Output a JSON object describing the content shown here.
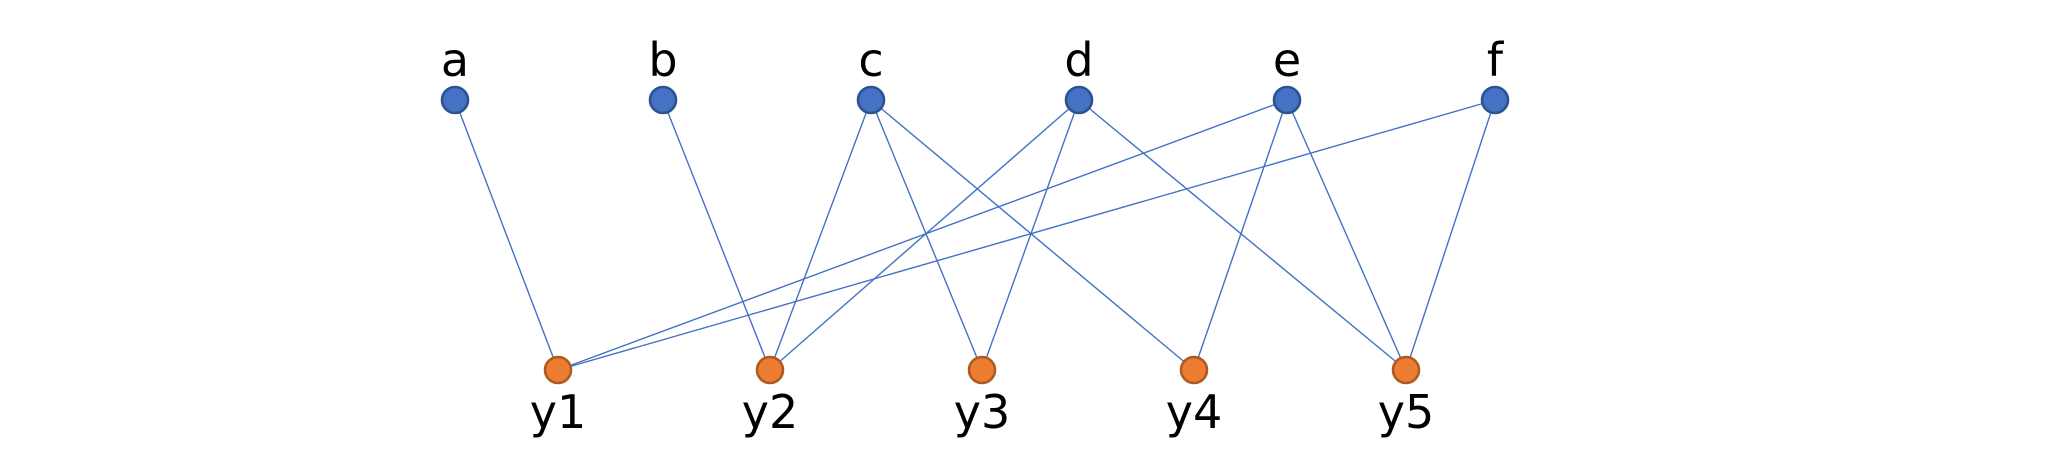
{
  "colors": {
    "top_node_fill": "#4472C4",
    "top_node_stroke": "#2F528F",
    "bottom_node_fill": "#ED7D31",
    "bottom_node_stroke": "#AE5A21",
    "edge": "#4472C4"
  },
  "top_nodes": [
    {
      "id": "a",
      "label": "a"
    },
    {
      "id": "b",
      "label": "b"
    },
    {
      "id": "c",
      "label": "c"
    },
    {
      "id": "d",
      "label": "d"
    },
    {
      "id": "e",
      "label": "e"
    },
    {
      "id": "f",
      "label": "f"
    }
  ],
  "bottom_nodes": [
    {
      "id": "y1",
      "label": "y1"
    },
    {
      "id": "y2",
      "label": "y2"
    },
    {
      "id": "y3",
      "label": "y3"
    },
    {
      "id": "y4",
      "label": "y4"
    },
    {
      "id": "y5",
      "label": "y5"
    }
  ],
  "edges": [
    [
      "a",
      "y1"
    ],
    [
      "b",
      "y2"
    ],
    [
      "c",
      "y2"
    ],
    [
      "c",
      "y3"
    ],
    [
      "c",
      "y4"
    ],
    [
      "d",
      "y2"
    ],
    [
      "d",
      "y3"
    ],
    [
      "d",
      "y5"
    ],
    [
      "e",
      "y1"
    ],
    [
      "e",
      "y4"
    ],
    [
      "e",
      "y5"
    ],
    [
      "f",
      "y1"
    ],
    [
      "f",
      "y5"
    ]
  ]
}
